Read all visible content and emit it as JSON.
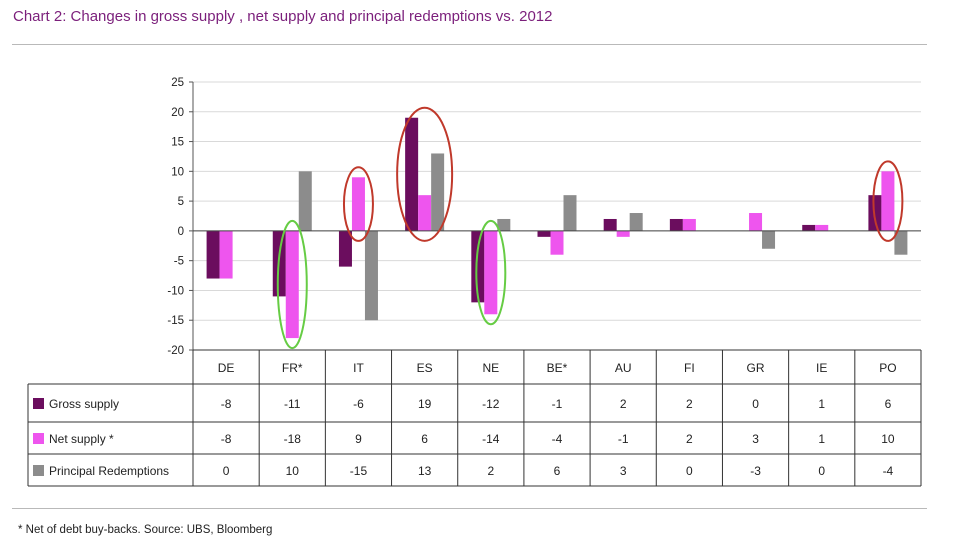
{
  "title": "Chart 2: Changes in gross supply , net supply and principal redemptions vs. 2012",
  "footnote": "* Net of debt buy-backs. Source: UBS, Bloomberg",
  "chart_data": {
    "type": "bar",
    "categories": [
      "DE",
      "FR*",
      "IT",
      "ES",
      "NE",
      "BE*",
      "AU",
      "FI",
      "GR",
      "IE",
      "PO"
    ],
    "ylim": [
      -20,
      25
    ],
    "yticks": [
      25,
      20,
      15,
      10,
      5,
      0,
      -5,
      -10,
      -15,
      -20
    ],
    "grid": true,
    "legend": "data-table",
    "series": [
      {
        "name": "Gross  supply",
        "color": "#6b0d5e",
        "values": [
          -8,
          -11,
          -6,
          19,
          -12,
          -1,
          2,
          2,
          0,
          1,
          6
        ],
        "labels": [
          "-8",
          "-11",
          "-6",
          "19",
          "-12",
          "-1",
          "2",
          "2",
          "0",
          "1",
          "6"
        ]
      },
      {
        "name": "Net supply *",
        "color": "#ee55ee",
        "values": [
          -8,
          -18,
          9,
          6,
          -14,
          -4,
          -1,
          2,
          3,
          1,
          10
        ],
        "labels": [
          "-8",
          "-18",
          "9",
          "6",
          "-14",
          "-4",
          "-1",
          "2",
          "3",
          "1",
          "10"
        ]
      },
      {
        "name": "Principal Redemptions",
        "color": "#8c8c8c",
        "values": [
          0,
          10,
          -15,
          13,
          2,
          6,
          3,
          0,
          -3,
          0,
          -4
        ],
        "labels": [
          "0",
          "10",
          "-15",
          "13",
          "2",
          "6",
          "3",
          "0",
          "-3",
          "0",
          "-4"
        ]
      }
    ],
    "annotations": [
      {
        "type": "ellipse",
        "color": "#c0392b",
        "categories": [
          "IT"
        ],
        "series": [
          "Net supply *"
        ]
      },
      {
        "type": "ellipse",
        "color": "#c0392b",
        "categories": [
          "ES"
        ],
        "series": [
          "Gross  supply",
          "Net supply *",
          "Principal Redemptions"
        ]
      },
      {
        "type": "ellipse",
        "color": "#c0392b",
        "categories": [
          "PO"
        ],
        "series": [
          "Net supply *"
        ]
      },
      {
        "type": "ellipse",
        "color": "#66cc44",
        "categories": [
          "FR*"
        ],
        "series": [
          "Net supply *"
        ]
      },
      {
        "type": "ellipse",
        "color": "#66cc44",
        "categories": [
          "NE"
        ],
        "series": [
          "Net supply *"
        ]
      }
    ]
  }
}
